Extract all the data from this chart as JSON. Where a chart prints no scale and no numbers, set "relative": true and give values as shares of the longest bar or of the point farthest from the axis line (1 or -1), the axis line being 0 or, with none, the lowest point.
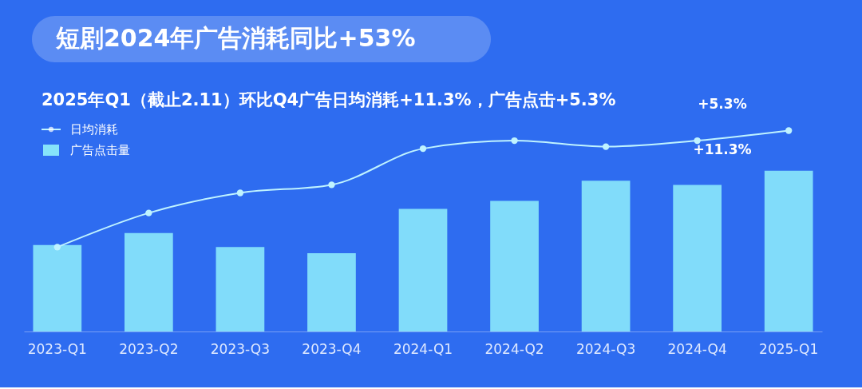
{
  "chart_data": {
    "type": "bar",
    "title": "短剧2024年广告消耗同比+53%",
    "subtitle": "2025年Q1（截止2.11）环比Q4广告日均消耗+11.3%，广告点击+5.3%",
    "categories": [
      "2023-Q1",
      "2023-Q2",
      "2023-Q3",
      "2023-Q4",
      "2024-Q1",
      "2024-Q2",
      "2024-Q3",
      "2024-Q4",
      "2025-Q1"
    ],
    "relative": true,
    "legend": "top left",
    "grid": false,
    "series": [
      {
        "name": "日均消耗",
        "type": "line",
        "color": "#bff3ff",
        "marker": "circle",
        "values": [
          0.42,
          0.59,
          0.69,
          0.73,
          0.91,
          0.95,
          0.92,
          0.95,
          1.0
        ]
      },
      {
        "name": "广告点击量",
        "color": "#86e3fa",
        "values": [
          0.43,
          0.49,
          0.42,
          0.39,
          0.61,
          0.65,
          0.75,
          0.73,
          0.8
        ]
      }
    ],
    "annotations": [
      "+5.3%",
      "+11.3%"
    ]
  }
}
